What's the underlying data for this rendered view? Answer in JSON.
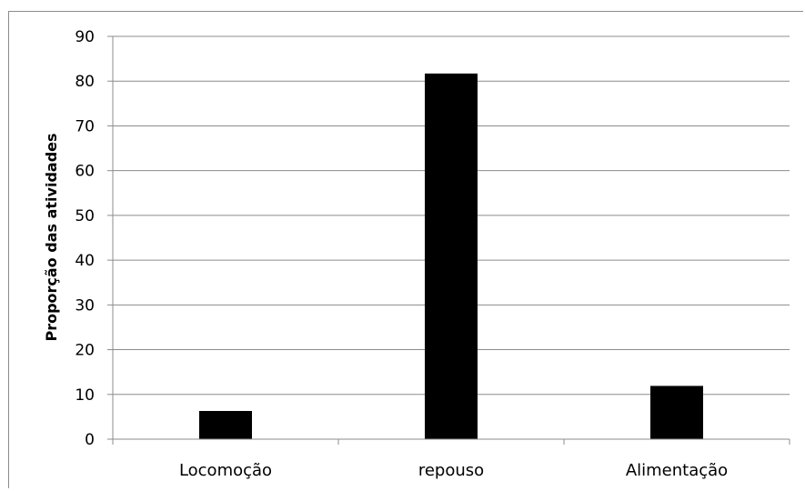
{
  "chart_data": {
    "type": "bar",
    "title": "",
    "xlabel": "",
    "ylabel": "Proporção das atividades",
    "categories": [
      "Locomoção",
      "repouso",
      "Alimentação"
    ],
    "values": [
      6.3,
      81.7,
      11.9
    ],
    "ylim": [
      0,
      90
    ],
    "yticks": [
      0,
      10,
      20,
      30,
      40,
      50,
      60,
      70,
      80,
      90
    ],
    "grid": true,
    "legend": "none",
    "colors": {
      "bar": "#000000",
      "grid": "#8c8c8c",
      "axis": "#8c8c8c"
    }
  }
}
